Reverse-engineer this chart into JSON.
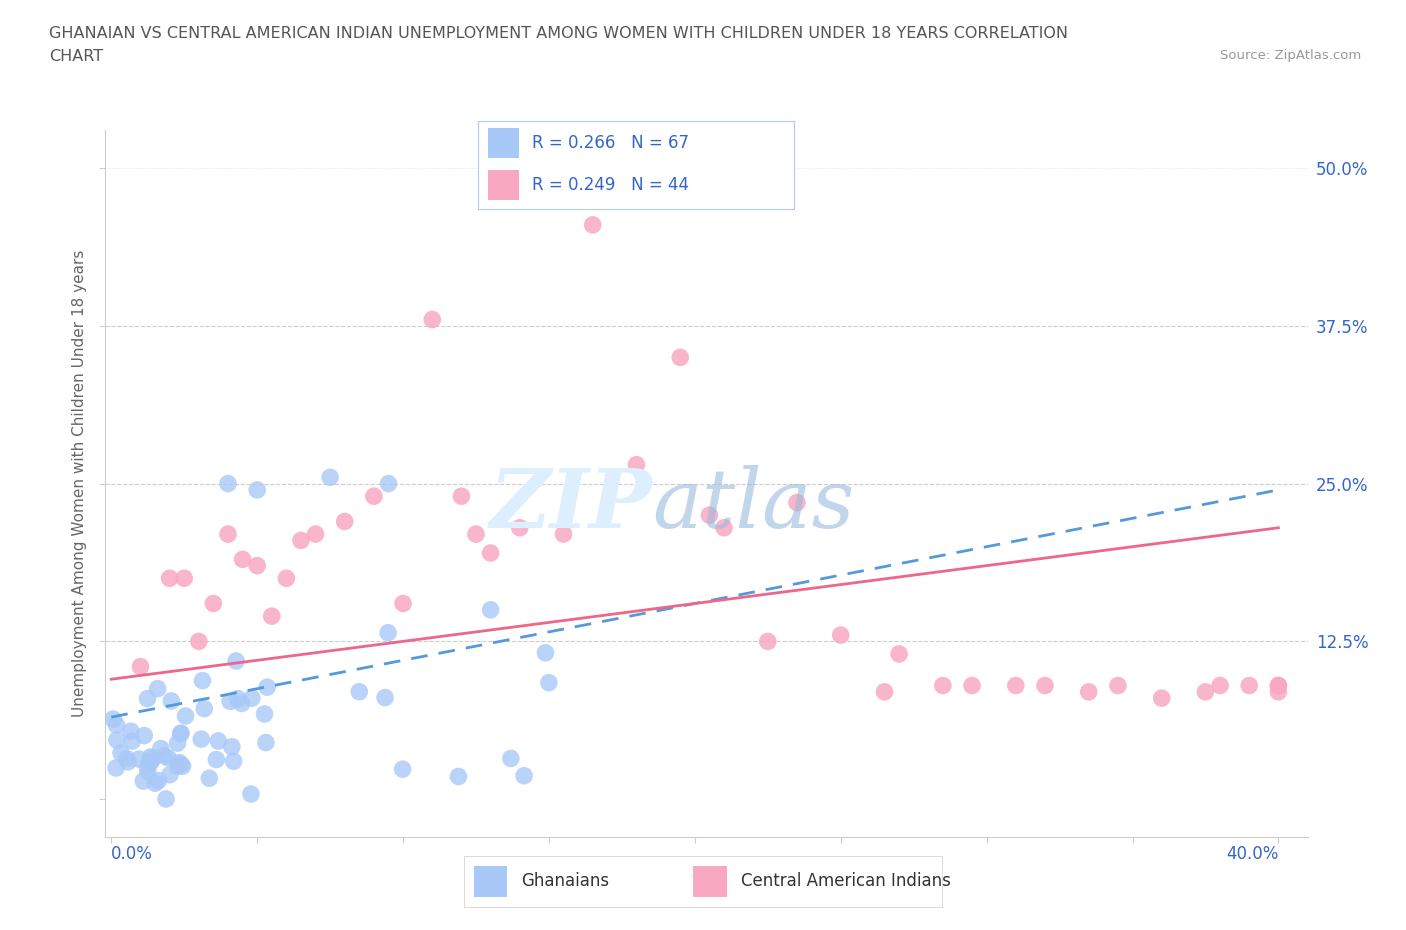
{
  "title_line1": "GHANAIAN VS CENTRAL AMERICAN INDIAN UNEMPLOYMENT AMONG WOMEN WITH CHILDREN UNDER 18 YEARS CORRELATION",
  "title_line2": "CHART",
  "source": "Source: ZipAtlas.com",
  "ylabel": "Unemployment Among Women with Children Under 18 years",
  "ytick_labels": [
    "",
    "12.5%",
    "25.0%",
    "37.5%",
    "50.0%"
  ],
  "xlim": [
    -0.002,
    0.41
  ],
  "ylim": [
    -0.03,
    0.53
  ],
  "ghanaian_R": 0.266,
  "ghanaian_N": 67,
  "central_american_R": 0.249,
  "central_american_N": 44,
  "ghanaian_color": "#a8c8f8",
  "central_american_color": "#f8a8c0",
  "ghanaian_line_color": "#5599dd",
  "central_american_line_color": "#ee6688",
  "background_color": "#ffffff",
  "gh_line_start": 0.065,
  "gh_line_end": 0.245,
  "ca_line_start": 0.095,
  "ca_line_end": 0.215,
  "ca_x": [
    0.01,
    0.02,
    0.03,
    0.04,
    0.05,
    0.06,
    0.065,
    0.07,
    0.08,
    0.09,
    0.1,
    0.11,
    0.12,
    0.125,
    0.13,
    0.14,
    0.155,
    0.165,
    0.18,
    0.195,
    0.205,
    0.21,
    0.225,
    0.235,
    0.25,
    0.265,
    0.27,
    0.285,
    0.295,
    0.31,
    0.32,
    0.335,
    0.345,
    0.36,
    0.375,
    0.38,
    0.39,
    0.4,
    0.4,
    0.4,
    0.025,
    0.035,
    0.045,
    0.055
  ],
  "ca_y": [
    0.105,
    0.175,
    0.125,
    0.21,
    0.185,
    0.175,
    0.205,
    0.21,
    0.22,
    0.24,
    0.155,
    0.38,
    0.24,
    0.21,
    0.195,
    0.215,
    0.21,
    0.455,
    0.265,
    0.35,
    0.225,
    0.215,
    0.125,
    0.235,
    0.13,
    0.085,
    0.115,
    0.09,
    0.09,
    0.09,
    0.09,
    0.085,
    0.09,
    0.08,
    0.085,
    0.09,
    0.09,
    0.09,
    0.085,
    0.09,
    0.175,
    0.155,
    0.19,
    0.145
  ]
}
